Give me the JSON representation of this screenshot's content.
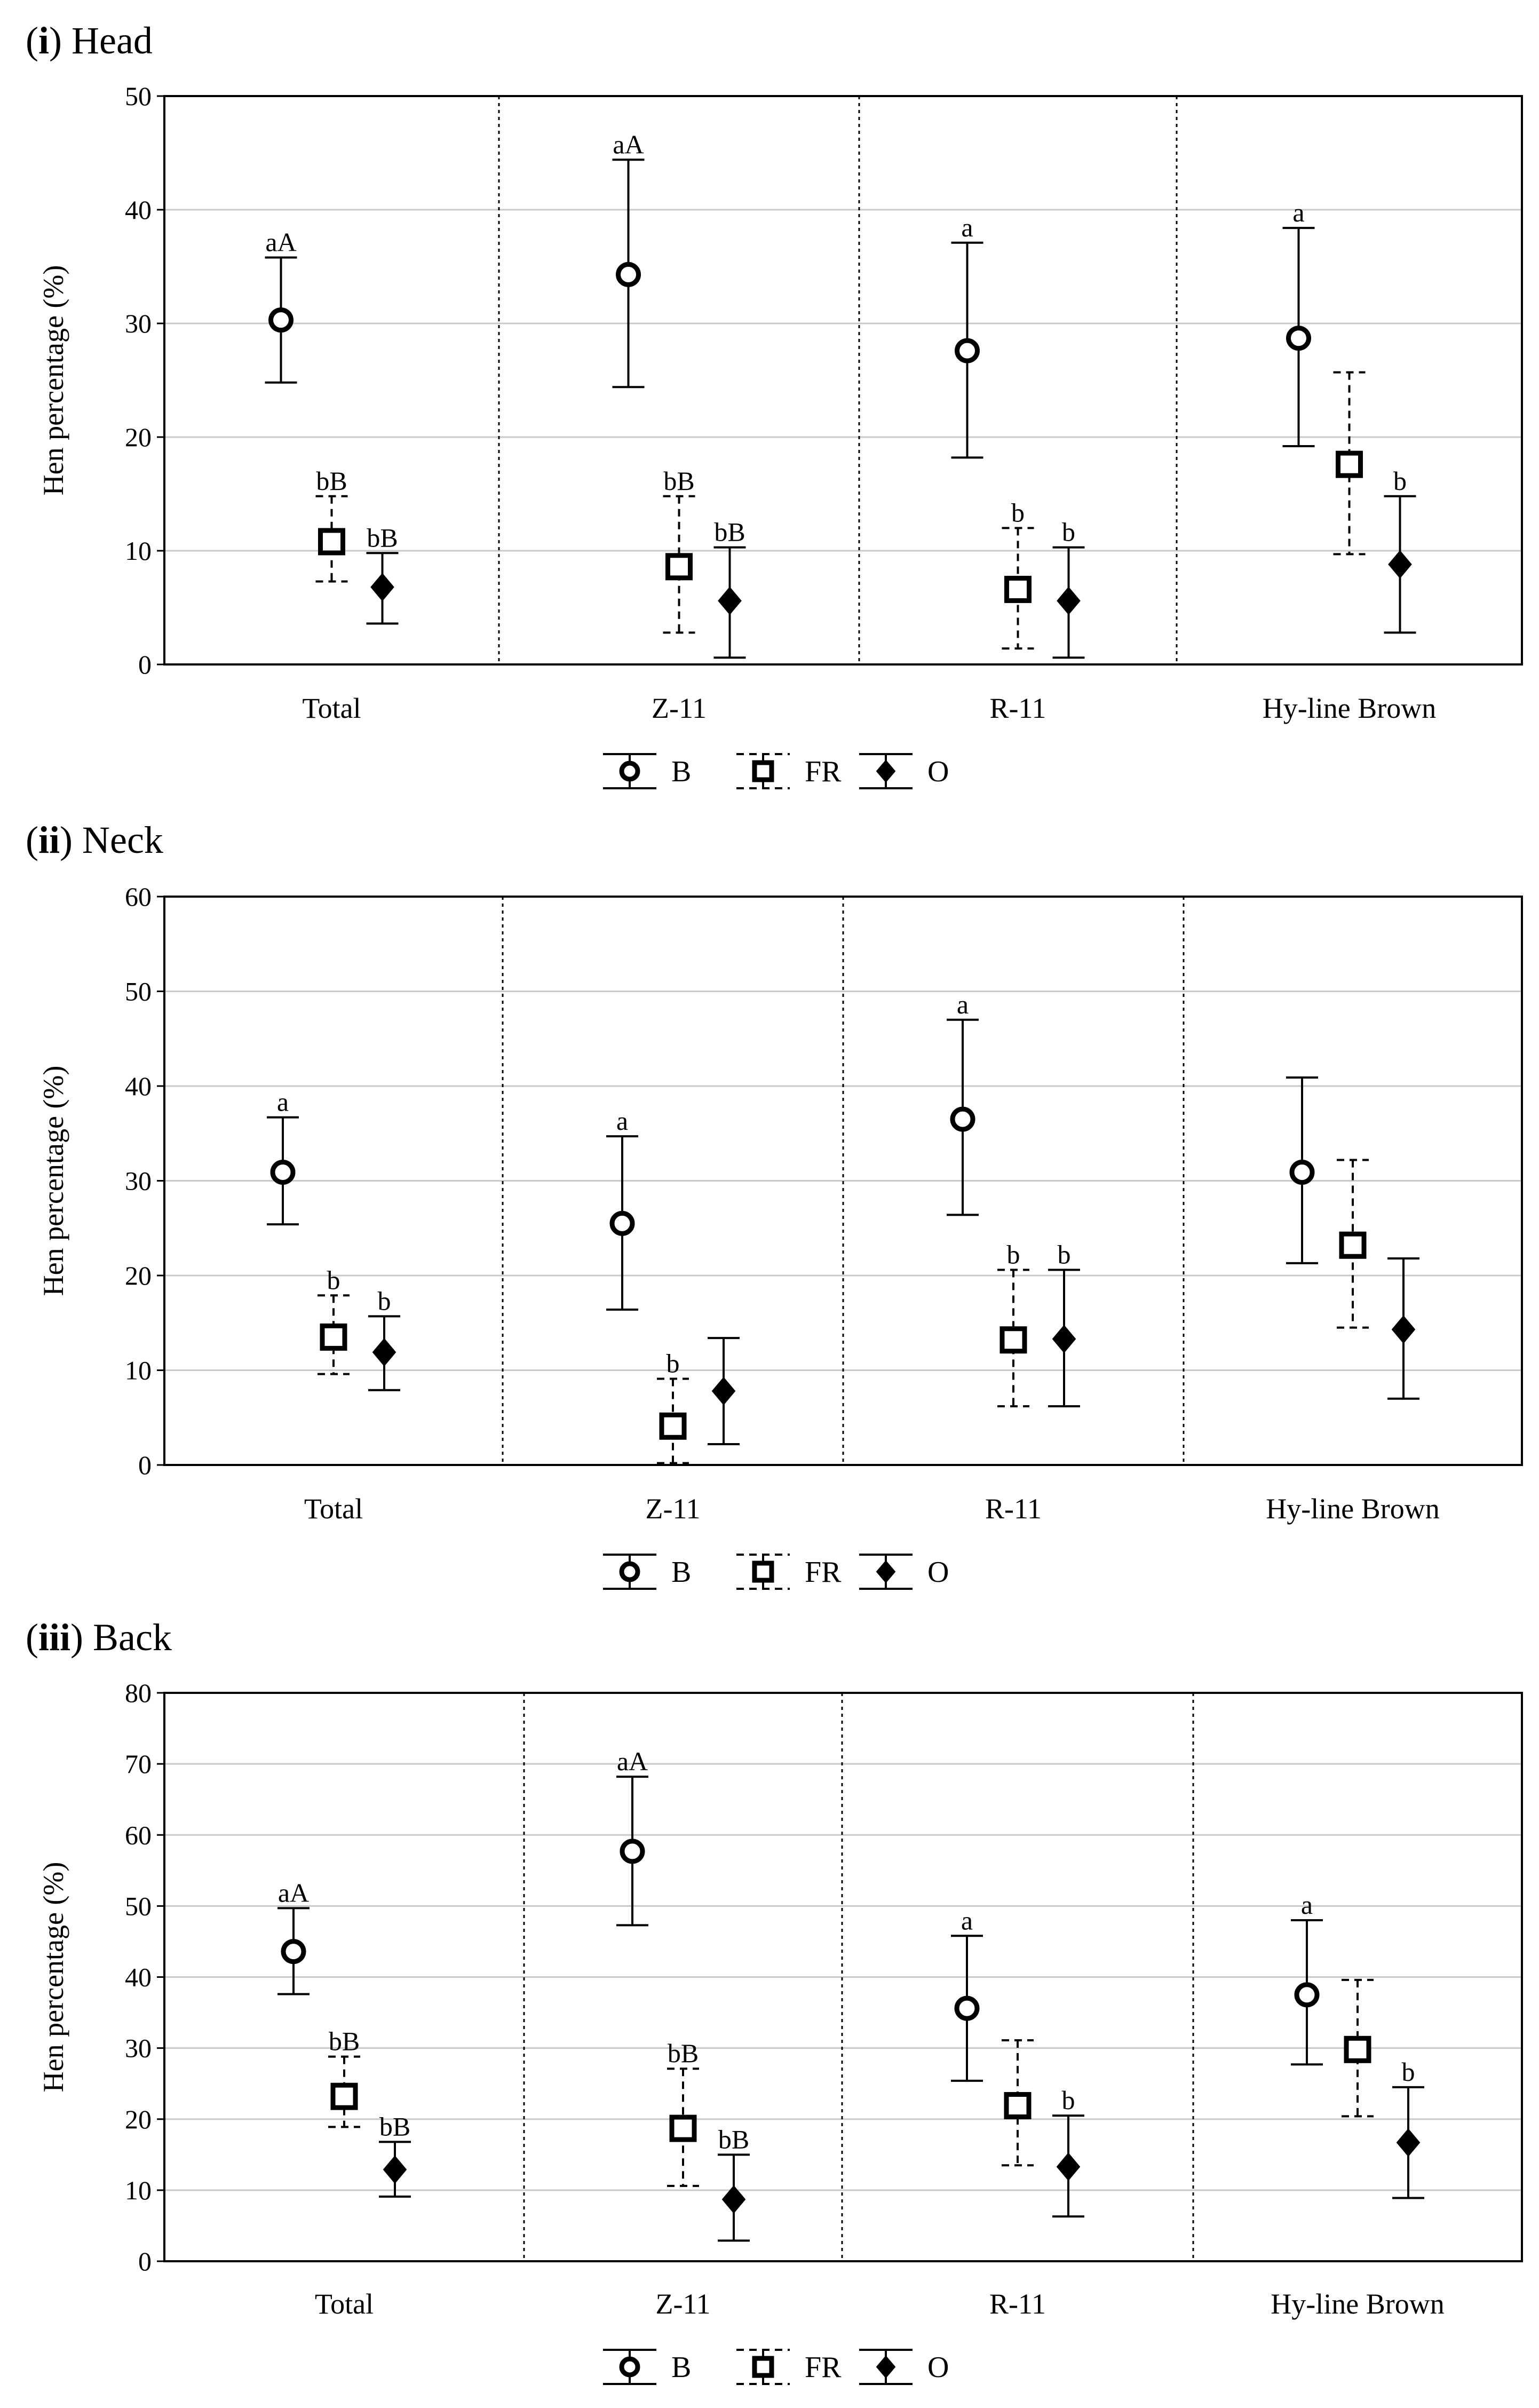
{
  "chart_data": [
    {
      "type": "scatter",
      "panel_label": "i",
      "title": "Head",
      "ylabel": "Hen percentage (%)",
      "ylim": [
        0,
        50
      ],
      "yticks": [
        0,
        10,
        20,
        30,
        40,
        50
      ],
      "categories": [
        "Total",
        "Z-11",
        "R-11",
        "Hy-line Brown"
      ],
      "grid": true,
      "series": [
        {
          "name": "B",
          "marker": "circle",
          "line": "solid",
          "values": [
            30.3,
            34.3,
            27.6,
            28.7
          ],
          "lower": [
            24.8,
            24.4,
            18.2,
            19.2
          ],
          "upper": [
            35.8,
            44.4,
            37.1,
            38.4
          ],
          "labels": [
            "aA",
            "aA",
            "a",
            "a"
          ]
        },
        {
          "name": "FR",
          "marker": "square",
          "line": "dashed",
          "values": [
            10.8,
            8.6,
            6.6,
            17.6
          ],
          "lower": [
            7.3,
            2.8,
            1.4,
            9.7
          ],
          "upper": [
            14.8,
            14.8,
            12.0,
            25.7
          ],
          "labels": [
            "bB",
            "bB",
            "b",
            ""
          ]
        },
        {
          "name": "O",
          "marker": "diamond",
          "line": "solid",
          "values": [
            6.8,
            5.6,
            5.6,
            8.8
          ],
          "lower": [
            3.6,
            0.6,
            0.6,
            2.8
          ],
          "upper": [
            9.8,
            10.3,
            10.3,
            14.8
          ],
          "labels": [
            "bB",
            "bB",
            "b",
            "b"
          ]
        }
      ]
    },
    {
      "type": "scatter",
      "panel_label": "ii",
      "title": "Neck",
      "ylabel": "Hen percentage (%)",
      "ylim": [
        0,
        60
      ],
      "yticks": [
        0,
        10,
        20,
        30,
        40,
        50,
        60
      ],
      "categories": [
        "Total",
        "Z-11",
        "R-11",
        "Hy-line Brown"
      ],
      "grid": true,
      "series": [
        {
          "name": "B",
          "marker": "circle",
          "line": "solid",
          "values": [
            30.9,
            25.5,
            36.5,
            30.9
          ],
          "lower": [
            25.4,
            16.4,
            26.4,
            21.3
          ],
          "upper": [
            36.7,
            34.7,
            47.0,
            40.9
          ],
          "labels": [
            "a",
            "a",
            "a",
            ""
          ]
        },
        {
          "name": "FR",
          "marker": "square",
          "line": "dashed",
          "values": [
            13.5,
            4.1,
            13.2,
            23.2
          ],
          "lower": [
            9.6,
            0.2,
            6.2,
            14.5
          ],
          "upper": [
            17.9,
            9.1,
            20.6,
            32.2
          ],
          "labels": [
            "b",
            "b",
            "b",
            ""
          ]
        },
        {
          "name": "O",
          "marker": "diamond",
          "line": "solid",
          "values": [
            11.9,
            7.8,
            13.3,
            14.3
          ],
          "lower": [
            7.9,
            2.2,
            6.2,
            7.0
          ],
          "upper": [
            15.7,
            13.4,
            20.6,
            21.8
          ],
          "labels": [
            "b",
            "",
            "b",
            ""
          ]
        }
      ]
    },
    {
      "type": "scatter",
      "panel_label": "iii",
      "title": "Back",
      "ylabel": "Hen percentage (%)",
      "ylim": [
        0,
        80
      ],
      "yticks": [
        0,
        10,
        20,
        30,
        40,
        50,
        60,
        70,
        80
      ],
      "categories": [
        "Total",
        "Z-11",
        "R-11",
        "Hy-line Brown"
      ],
      "grid": true,
      "series": [
        {
          "name": "B",
          "marker": "circle",
          "line": "solid",
          "values": [
            43.6,
            57.7,
            35.6,
            37.5
          ],
          "lower": [
            37.6,
            47.3,
            25.4,
            27.7
          ],
          "upper": [
            49.7,
            68.2,
            45.8,
            48.0
          ],
          "labels": [
            "aA",
            "aA",
            "a",
            "a"
          ]
        },
        {
          "name": "FR",
          "marker": "square",
          "line": "dashed",
          "values": [
            23.2,
            18.7,
            21.9,
            29.8
          ],
          "lower": [
            18.9,
            10.6,
            13.5,
            20.4
          ],
          "upper": [
            28.8,
            27.1,
            31.1,
            39.6
          ],
          "labels": [
            "bB",
            "bB",
            "",
            ""
          ]
        },
        {
          "name": "O",
          "marker": "diamond",
          "line": "solid",
          "values": [
            12.9,
            8.7,
            13.3,
            16.7
          ],
          "lower": [
            9.1,
            2.9,
            6.3,
            8.9
          ],
          "upper": [
            16.8,
            15.0,
            20.5,
            24.5
          ],
          "labels": [
            "bB",
            "bB",
            "b",
            "b"
          ]
        }
      ]
    }
  ]
}
